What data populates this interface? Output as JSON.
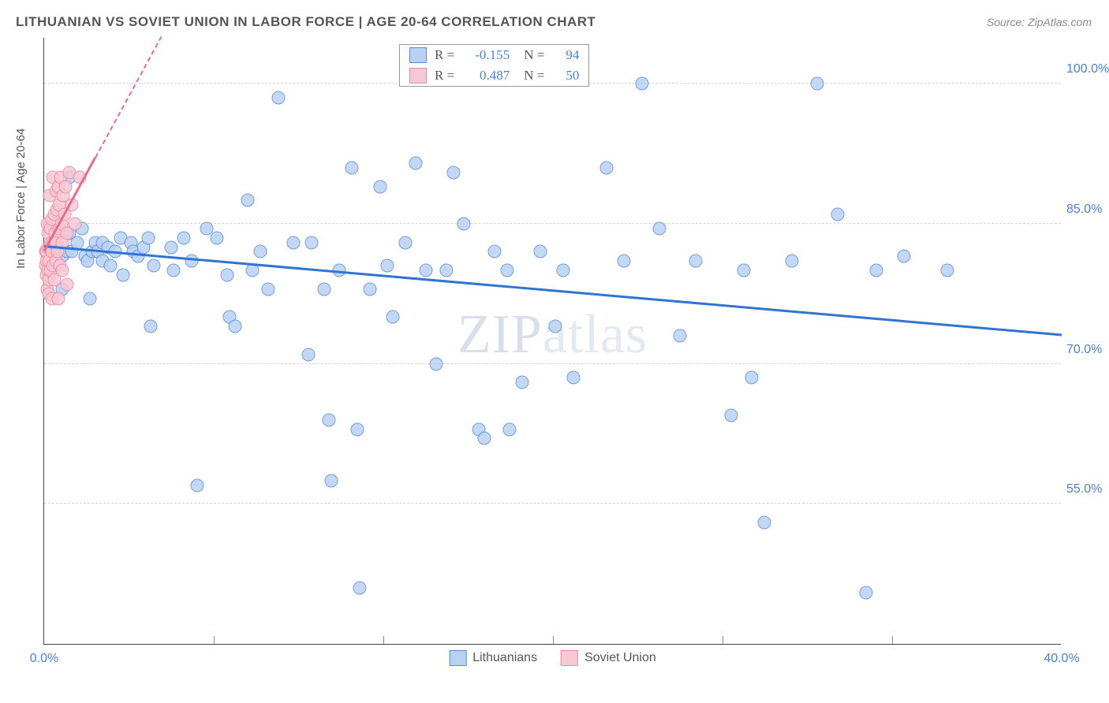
{
  "title": "LITHUANIAN VS SOVIET UNION IN LABOR FORCE | AGE 20-64 CORRELATION CHART",
  "source": "Source: ZipAtlas.com",
  "yaxis_title": "In Labor Force | Age 20-64",
  "watermark_a": "ZIP",
  "watermark_b": "atlas",
  "chart": {
    "type": "scatter",
    "xlim": [
      0,
      40
    ],
    "ylim": [
      40,
      105
    ],
    "xticks": [
      {
        "v": 0,
        "label": "0.0%"
      },
      {
        "v": 40,
        "label": "40.0%"
      }
    ],
    "xticks_minor": [
      6.67,
      13.33,
      20,
      26.67,
      33.33
    ],
    "yticks": [
      {
        "v": 55,
        "label": "55.0%"
      },
      {
        "v": 70,
        "label": "70.0%"
      },
      {
        "v": 85,
        "label": "85.0%"
      },
      {
        "v": 100,
        "label": "100.0%"
      }
    ],
    "grid_color": "#d5d5d5",
    "background_color": "#ffffff",
    "axis_color": "#444444",
    "tick_label_color": "#4a82d6",
    "series": [
      {
        "name": "Lithuanians",
        "marker_fill": "#b9d2f3",
        "marker_stroke": "#5a8fd6",
        "marker_size": 17,
        "trend_color": "#2e74d0",
        "trend": {
          "x1": 0,
          "y1": 82.5,
          "x2": 40,
          "y2": 73.0
        },
        "r": "-0.155",
        "n": "94",
        "points": [
          [
            0.2,
            82
          ],
          [
            0.4,
            82
          ],
          [
            0.5,
            82.5
          ],
          [
            0.7,
            81.5
          ],
          [
            0.7,
            78
          ],
          [
            0.9,
            82
          ],
          [
            1.0,
            90
          ],
          [
            1.0,
            84
          ],
          [
            1.1,
            82
          ],
          [
            1.3,
            83
          ],
          [
            1.5,
            84.5
          ],
          [
            1.6,
            81.5
          ],
          [
            1.7,
            81
          ],
          [
            1.8,
            77
          ],
          [
            1.9,
            82
          ],
          [
            2.0,
            83
          ],
          [
            2.1,
            82
          ],
          [
            2.3,
            83
          ],
          [
            2.3,
            81
          ],
          [
            2.5,
            82.5
          ],
          [
            2.6,
            80.5
          ],
          [
            2.8,
            82
          ],
          [
            3.0,
            83.5
          ],
          [
            3.1,
            79.5
          ],
          [
            3.4,
            83
          ],
          [
            3.5,
            82
          ],
          [
            3.7,
            81.5
          ],
          [
            3.9,
            82.5
          ],
          [
            4.1,
            83.5
          ],
          [
            4.3,
            80.5
          ],
          [
            4.2,
            74
          ],
          [
            5.0,
            82.5
          ],
          [
            5.1,
            80
          ],
          [
            5.5,
            83.5
          ],
          [
            5.8,
            81
          ],
          [
            6.0,
            57
          ],
          [
            6.4,
            84.5
          ],
          [
            6.8,
            83.5
          ],
          [
            7.2,
            79.5
          ],
          [
            7.3,
            75
          ],
          [
            7.5,
            74
          ],
          [
            8.0,
            87.5
          ],
          [
            8.2,
            80
          ],
          [
            8.5,
            82
          ],
          [
            8.8,
            78
          ],
          [
            9.2,
            98.5
          ],
          [
            9.8,
            83
          ],
          [
            10.4,
            71
          ],
          [
            10.5,
            83
          ],
          [
            11.0,
            78
          ],
          [
            11.2,
            64
          ],
          [
            11.3,
            57.5
          ],
          [
            11.6,
            80
          ],
          [
            12.1,
            91
          ],
          [
            12.3,
            63
          ],
          [
            12.4,
            46
          ],
          [
            12.8,
            78
          ],
          [
            13.2,
            89
          ],
          [
            13.5,
            80.5
          ],
          [
            13.7,
            75
          ],
          [
            14.2,
            83
          ],
          [
            14.6,
            91.5
          ],
          [
            15.0,
            80
          ],
          [
            15.4,
            70
          ],
          [
            15.8,
            80
          ],
          [
            16.1,
            90.5
          ],
          [
            16.5,
            85
          ],
          [
            17.1,
            63
          ],
          [
            17.3,
            62
          ],
          [
            17.7,
            82
          ],
          [
            18.2,
            80
          ],
          [
            18.3,
            63
          ],
          [
            18.8,
            68
          ],
          [
            19.5,
            82
          ],
          [
            20.1,
            74
          ],
          [
            20.4,
            80
          ],
          [
            20.8,
            68.5
          ],
          [
            22.1,
            91
          ],
          [
            22.8,
            81
          ],
          [
            23.5,
            100
          ],
          [
            24.2,
            84.5
          ],
          [
            25.0,
            73
          ],
          [
            25.6,
            81
          ],
          [
            27.0,
            64.5
          ],
          [
            27.5,
            80
          ],
          [
            27.8,
            68.5
          ],
          [
            28.3,
            53
          ],
          [
            29.4,
            81
          ],
          [
            30.4,
            100
          ],
          [
            31.2,
            86
          ],
          [
            32.3,
            45.5
          ],
          [
            32.7,
            80
          ],
          [
            33.8,
            81.5
          ],
          [
            35.5,
            80
          ]
        ]
      },
      {
        "name": "Soviet Union",
        "marker_fill": "#f7c7d4",
        "marker_stroke": "#e88aa5",
        "marker_size": 17,
        "trend_color": "#e86b8f",
        "trend": {
          "x1": 0,
          "y1": 82.0,
          "x2": 2.0,
          "y2": 92.0
        },
        "trend_dash": {
          "x1": 2.0,
          "y1": 92.0,
          "x2": 4.6,
          "y2": 105.0
        },
        "r": "0.487",
        "n": "50",
        "points": [
          [
            0.05,
            82
          ],
          [
            0.07,
            80.5
          ],
          [
            0.08,
            81
          ],
          [
            0.1,
            82
          ],
          [
            0.1,
            79.5
          ],
          [
            0.12,
            78
          ],
          [
            0.12,
            85
          ],
          [
            0.15,
            84
          ],
          [
            0.15,
            80
          ],
          [
            0.17,
            82.5
          ],
          [
            0.18,
            77.5
          ],
          [
            0.2,
            81
          ],
          [
            0.2,
            79
          ],
          [
            0.22,
            82.5
          ],
          [
            0.22,
            88
          ],
          [
            0.25,
            84.5
          ],
          [
            0.25,
            80
          ],
          [
            0.28,
            83
          ],
          [
            0.3,
            77
          ],
          [
            0.3,
            82
          ],
          [
            0.32,
            85.5
          ],
          [
            0.35,
            80.5
          ],
          [
            0.35,
            90
          ],
          [
            0.38,
            83
          ],
          [
            0.4,
            86
          ],
          [
            0.4,
            79
          ],
          [
            0.42,
            84
          ],
          [
            0.45,
            88.5
          ],
          [
            0.45,
            81
          ],
          [
            0.48,
            83
          ],
          [
            0.5,
            86.5
          ],
          [
            0.52,
            82
          ],
          [
            0.55,
            89
          ],
          [
            0.55,
            77
          ],
          [
            0.58,
            84.5
          ],
          [
            0.6,
            87
          ],
          [
            0.62,
            80.5
          ],
          [
            0.65,
            90
          ],
          [
            0.68,
            85
          ],
          [
            0.7,
            83
          ],
          [
            0.7,
            80
          ],
          [
            0.75,
            88
          ],
          [
            0.8,
            86
          ],
          [
            0.85,
            89
          ],
          [
            0.9,
            84
          ],
          [
            0.9,
            78.5
          ],
          [
            1.0,
            90.5
          ],
          [
            1.1,
            87
          ],
          [
            1.2,
            85
          ],
          [
            1.4,
            90
          ]
        ]
      }
    ]
  },
  "stats_header": {
    "r_label": "R =",
    "n_label": "N ="
  },
  "legend": [
    {
      "label": "Lithuanians"
    },
    {
      "label": "Soviet Union"
    }
  ]
}
